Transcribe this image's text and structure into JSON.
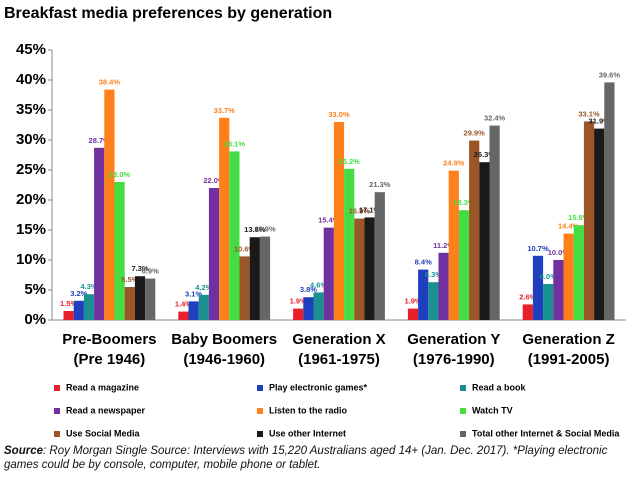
{
  "chart_data": {
    "type": "bar",
    "title": "Breakfast media preferences by generation",
    "categories": [
      "Pre-Boomers\n(Pre 1946)",
      "Baby Boomers\n(1946-1960)",
      "Generation X\n(1961-1975)",
      "Generation Y\n(1976-1990)",
      "Generation Z\n(1991-2005)"
    ],
    "series": [
      {
        "name": "Read a magazine",
        "color": "#e8202a",
        "values": [
          1.5,
          1.4,
          1.9,
          1.9,
          2.6
        ],
        "value_labels": [
          "1.5%",
          "1.4%",
          "1.9%",
          "1.9%",
          "2.6%"
        ]
      },
      {
        "name": "Play electronic games*",
        "color": "#1f3fbf",
        "values": [
          3.2,
          3.1,
          3.8,
          8.4,
          10.7
        ],
        "value_labels": [
          "3.2%",
          "3.1%",
          "3.8%",
          "8.4%",
          "10.7%"
        ]
      },
      {
        "name": "Read a book",
        "color": "#1a9090",
        "values": [
          4.3,
          4.2,
          4.6,
          6.3,
          6.0
        ],
        "value_labels": [
          "4.3%",
          "4.2%",
          "4.6%",
          "6.3%",
          "6.0%"
        ]
      },
      {
        "name": "Read a newspaper",
        "color": "#7030a0",
        "values": [
          28.7,
          22.0,
          15.4,
          11.2,
          10.0
        ],
        "value_labels": [
          "28.7%",
          "22.0%",
          "15.4%",
          "11.2%",
          "10.0%"
        ]
      },
      {
        "name": "Listen to the radio",
        "color": "#ff7f1a",
        "values": [
          38.4,
          33.7,
          33.0,
          24.9,
          14.4
        ],
        "value_labels": [
          "38.4%",
          "33.7%",
          "33.0%",
          "24.9%",
          "14.4%"
        ]
      },
      {
        "name": "Watch TV",
        "color": "#44dd44",
        "values": [
          23.0,
          28.1,
          25.2,
          18.3,
          15.8
        ],
        "value_labels": [
          "23.0%",
          "28.1%",
          "25.2%",
          "18.3%",
          "15.8%"
        ]
      },
      {
        "name": "Use Social Media",
        "color": "#9b5526",
        "values": [
          5.5,
          10.6,
          16.9,
          29.9,
          33.1
        ],
        "value_labels": [
          "5.5%",
          "10.6%",
          "16.9%",
          "29.9%",
          "33.1%"
        ]
      },
      {
        "name": "Use other Internet",
        "color": "#1a1a1a",
        "values": [
          7.3,
          13.8,
          17.1,
          26.3,
          31.9
        ],
        "value_labels": [
          "7.3%",
          "13.8%",
          "17.1%",
          "26.3%",
          "31.9%"
        ]
      },
      {
        "name": "Total other Internet & Social Media",
        "color": "#666666",
        "values": [
          6.9,
          13.9,
          21.3,
          32.4,
          39.6
        ],
        "value_labels": [
          "6.9%",
          "13.9%",
          "21.3%",
          "32.4%",
          "39.6%"
        ]
      }
    ],
    "ylim": [
      0,
      45
    ],
    "yticks": [
      {
        "value": 0,
        "label": "0%"
      },
      {
        "value": 5,
        "label": "5%"
      },
      {
        "value": 10,
        "label": "10%"
      },
      {
        "value": 15,
        "label": "15%"
      },
      {
        "value": 20,
        "label": "20%"
      },
      {
        "value": 25,
        "label": "25%"
      },
      {
        "value": 30,
        "label": "30%"
      },
      {
        "value": 35,
        "label": "35%"
      },
      {
        "value": 40,
        "label": "40%"
      },
      {
        "value": 45,
        "label": "45%"
      }
    ],
    "grid": false,
    "source_label": "Source",
    "source": ": Roy Morgan Single Source: Interviews with 15,220 Australians aged 14+ (Jan. Dec. 2017). *Playing electronic games could be by console, computer, mobile phone or tablet."
  }
}
